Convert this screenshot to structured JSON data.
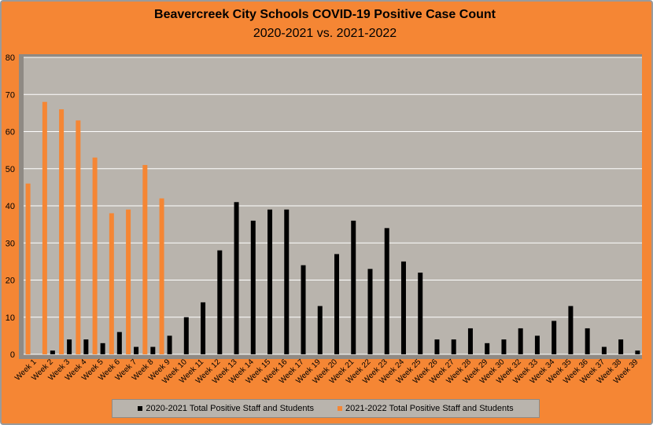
{
  "chart_data": {
    "type": "bar",
    "title": "Beavercreek City Schools COVID-19 Positive Case Count",
    "subtitle": "2020-2021 vs. 2021-2022",
    "ylim": [
      0,
      80
    ],
    "yticks": [
      0,
      10,
      20,
      30,
      40,
      50,
      60,
      70,
      80
    ],
    "grid": true,
    "legend_position": "bottom",
    "categories": [
      "Week 1",
      "Week 2",
      "Week 3",
      "Week 4",
      "Week 5",
      "Week 6",
      "Week 7",
      "Week 8",
      "Week 9",
      "Week 10",
      "Week 11",
      "Week 12",
      "Week 13",
      "Week 14",
      "Week 15",
      "Week 16",
      "Week 17",
      "Week 19",
      "Week 20",
      "Week 21",
      "Week 22",
      "Week 23",
      "Week 24",
      "Week 25",
      "Week 26",
      "Week 27",
      "Week 28",
      "Week 29",
      "Week 30",
      "Week 32",
      "Week 33",
      "Week 34",
      "Week 35",
      "Week 36",
      "Week 37",
      "Week 38",
      "Week 39"
    ],
    "series": [
      {
        "name": "2020-2021 Total Positive Staff and Students",
        "color": "#000000",
        "values": [
          0,
          1,
          4,
          4,
          3,
          6,
          2,
          2,
          5,
          10,
          14,
          28,
          41,
          36,
          39,
          39,
          24,
          13,
          27,
          36,
          23,
          34,
          25,
          22,
          4,
          4,
          7,
          3,
          4,
          7,
          5,
          9,
          13,
          7,
          2,
          4,
          1
        ]
      },
      {
        "name": "2021-2022 Total Positive Staff and Students",
        "color": "#f58634",
        "values": [
          46,
          68,
          66,
          63,
          53,
          38,
          39,
          51,
          42,
          null,
          null,
          null,
          null,
          null,
          null,
          null,
          null,
          null,
          null,
          null,
          null,
          null,
          null,
          null,
          null,
          null,
          null,
          null,
          null,
          null,
          null,
          null,
          null,
          null,
          null,
          null,
          null
        ]
      }
    ]
  },
  "colors": {
    "background": "#f58634",
    "plot_area": "#b9b4ad",
    "gridline": "#ffffff"
  }
}
